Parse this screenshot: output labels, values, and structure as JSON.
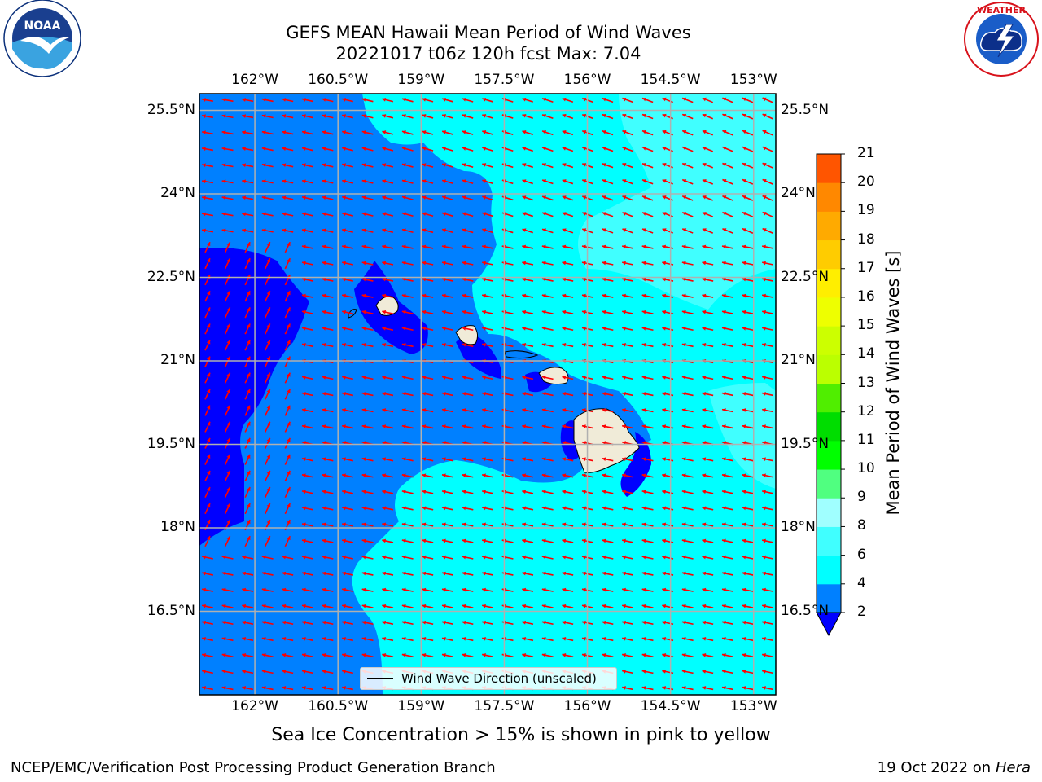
{
  "title": {
    "line1": "GEFS MEAN Hawaii Mean Period of Wind Waves",
    "line2": "20221017 t06z 120h fcst   Max: 7.04"
  },
  "logos": {
    "left": {
      "icon": "noaa-logo",
      "text": "NOAA",
      "ring_text": "NATIONAL OCEANIC AND ATMOSPHERIC ADMINISTRATION · U.S. DEPARTMENT OF COMMERCE"
    },
    "right": {
      "icon": "nws-logo",
      "ring_text": "NATIONAL WEATHER SERVICE"
    }
  },
  "map": {
    "lon_ticks": [
      "162°W",
      "160.5°W",
      "159°W",
      "157.5°W",
      "156°W",
      "154.5°W",
      "153°W"
    ],
    "lon_values": [
      -162,
      -160.5,
      -159,
      -157.5,
      -156,
      -154.5,
      -153
    ],
    "lat_ticks": [
      "25.5°N",
      "24°N",
      "22.5°N",
      "21°N",
      "19.5°N",
      "18°N",
      "16.5°N"
    ],
    "lat_values": [
      25.5,
      24,
      22.5,
      21,
      19.5,
      18,
      16.5
    ],
    "lon_range": [
      -163,
      -152.6
    ],
    "lat_range": [
      15.0,
      25.8
    ],
    "grid": true,
    "arrow_color": "#ff0000",
    "land_color": "#f0ebd8",
    "legend_label": "Wind Wave Direction (unscaled)"
  },
  "colorbar": {
    "label": "Mean Period of Wind Waves [s]",
    "ticks": [
      "2",
      "4",
      "6",
      "8",
      "9",
      "10",
      "11",
      "12",
      "13",
      "14",
      "15",
      "16",
      "17",
      "18",
      "19",
      "20",
      "21"
    ],
    "levels": [
      2,
      4,
      6,
      8,
      9,
      10,
      11,
      12,
      13,
      14,
      15,
      16,
      17,
      18,
      19,
      20,
      21
    ],
    "colors": [
      "#0080ff",
      "#00ffff",
      "#40ffff",
      "#a0ffff",
      "#50ff80",
      "#00ff00",
      "#00dd00",
      "#50ee00",
      "#bbff00",
      "#ccff00",
      "#eeff00",
      "#ffee00",
      "#ffcc00",
      "#ffaa00",
      "#ff8800",
      "#ff5500",
      "#ff2200",
      "#ff0000"
    ],
    "under_color": "#0000ff"
  },
  "caption": "Sea Ice Concentration > 15% is shown in pink to yellow",
  "footer": {
    "left": "NCEP/EMC/Verification Post Processing Product Generation Branch",
    "right_prefix": "19 Oct 2022 on ",
    "right_host": "Hera"
  }
}
